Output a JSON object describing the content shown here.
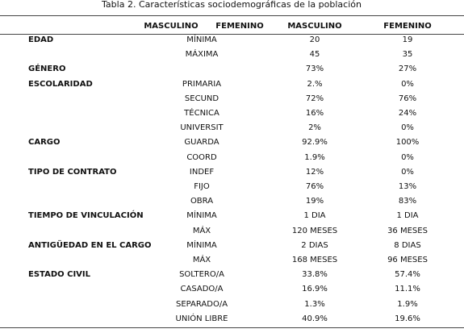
{
  "title": "Tabla 2. Características sociodemográficas de la población",
  "header": [
    "MASCULINO",
    "FEMENINO",
    "MASCULINO",
    "FEMENINO"
  ],
  "groups": [
    {
      "label": "EDAD",
      "rows": [
        {
          "sub": "MÍNIMA",
          "masculino": "20",
          "femenino": "19"
        },
        {
          "sub": "MÁXIMA",
          "masculino": "45",
          "femenino": "35"
        }
      ]
    },
    {
      "label": "GÉNERO",
      "rows": [
        {
          "masculino": "73%",
          "femenino": "27%"
        }
      ]
    },
    {
      "label": "ESCOLARIDAD",
      "rows": [
        {
          "sub": "PRIMARIA",
          "masculino": "2.%",
          "femenino": "0%"
        },
        {
          "sub": "SECUND",
          "masculino": "72%",
          "femenino": "76%"
        },
        {
          "sub": "TÉCNICA",
          "masculino": "16%",
          "femenino": "24%"
        },
        {
          "sub": "UNIVERSIT",
          "masculino": "2%",
          "femenino": "0%"
        }
      ]
    },
    {
      "label": "CARGO",
      "rows": [
        {
          "sub": "GUARDA",
          "masculino": "92.9%",
          "femenino": "100%"
        },
        {
          "sub": "COORD",
          "masculino": "1.9%",
          "femenino": "0%"
        }
      ]
    },
    {
      "label": "TIPO DE CONTRATO",
      "rows": [
        {
          "sub": "INDEF",
          "masculino": "12%",
          "femenino": "0%"
        },
        {
          "sub": "FIJO",
          "masculino": "76%",
          "femenino": "13%"
        },
        {
          "sub": "OBRA",
          "masculino": "19%",
          "femenino": "83%"
        }
      ]
    },
    {
      "label": "TIEMPO DE VINCULACIÓN",
      "rows": [
        {
          "sub": "MÍNIMA",
          "masculino": "1 DIA",
          "femenino": "1 DIA"
        },
        {
          "sub": "MÁX",
          "masculino": "120 MESES",
          "femenino": "36 MESES"
        }
      ]
    },
    {
      "label": "ANTIGÜEDAD EN EL CARGO",
      "rows": [
        {
          "sub": "MÍNIMA",
          "masculino": "2 DIAS",
          "femenino": "8 DIAS"
        },
        {
          "sub": "MÁX",
          "masculino": "168 MESES",
          "femenino": "96 MESES"
        }
      ]
    },
    {
      "label": "ESTADO CIVIL",
      "rows": [
        {
          "sub": "SOLTERO/A",
          "masculino": "33.8%",
          "femenino": "57.4%"
        },
        {
          "sub": "CASADO/A",
          "masculino": "16.9%",
          "femenino": "11.1%"
        },
        {
          "sub": "SEPARADO/A",
          "masculino": "1.3%",
          "femenino": "1.9%"
        },
        {
          "sub": "UNIÓN LIBRE",
          "masculino": "40.9%",
          "femenino": "19.6%"
        }
      ]
    }
  ]
}
